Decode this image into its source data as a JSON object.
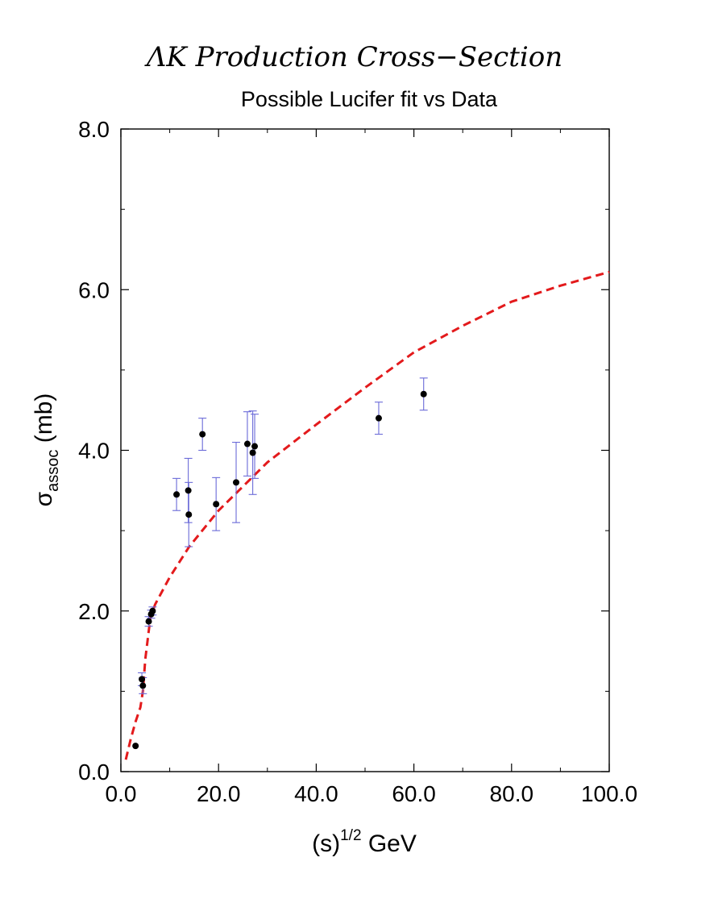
{
  "chart_data": {
    "type": "scatter",
    "title": "ΛK Production Cross−Section",
    "subtitle": "Possible Lucifer fit vs Data",
    "xlabel": {
      "main": "(s)",
      "sup": "1/2",
      "unit": " GeV"
    },
    "ylabel": {
      "symbol": "σ",
      "sub": "assoc",
      "unit": " (mb)"
    },
    "xlim": [
      0,
      100
    ],
    "ylim": [
      0,
      8
    ],
    "x_ticks": [
      "0.0",
      "20.0",
      "40.0",
      "60.0",
      "80.0",
      "100.0"
    ],
    "y_ticks": [
      "0.0",
      "2.0",
      "4.0",
      "6.0",
      "8.0"
    ],
    "x_tick_values": [
      0,
      20,
      40,
      60,
      80,
      100
    ],
    "y_tick_values": [
      0,
      2,
      4,
      6,
      8
    ],
    "grid": false,
    "colors": {
      "fit": "#e31a1c",
      "errorbar": "#6a6ad8",
      "point": "#000000"
    },
    "series": [
      {
        "kind": "data",
        "points": [
          {
            "x": 3.0,
            "y": 0.32,
            "err": 0.0
          },
          {
            "x": 4.3,
            "y": 1.15,
            "err": 0.08
          },
          {
            "x": 4.5,
            "y": 1.07,
            "err": 0.1
          },
          {
            "x": 5.7,
            "y": 1.87,
            "err": 0.06
          },
          {
            "x": 6.2,
            "y": 1.96,
            "err": 0.05
          },
          {
            "x": 6.5,
            "y": 2.0,
            "err": 0.05
          },
          {
            "x": 11.4,
            "y": 3.45,
            "err": 0.2
          },
          {
            "x": 13.8,
            "y": 3.5,
            "err": 0.4
          },
          {
            "x": 13.9,
            "y": 3.2,
            "err": 0.4
          },
          {
            "x": 16.7,
            "y": 4.2,
            "err": 0.2
          },
          {
            "x": 19.5,
            "y": 3.33,
            "err": 0.33
          },
          {
            "x": 23.6,
            "y": 3.6,
            "err": 0.5
          },
          {
            "x": 25.9,
            "y": 4.08,
            "err": 0.4
          },
          {
            "x": 27.0,
            "y": 3.97,
            "err": 0.52
          },
          {
            "x": 27.4,
            "y": 4.05,
            "err": 0.4
          },
          {
            "x": 52.8,
            "y": 4.4,
            "err": 0.2
          },
          {
            "x": 62.0,
            "y": 4.7,
            "err": 0.2
          }
        ]
      },
      {
        "kind": "fit",
        "style": "dashed",
        "x": [
          1.0,
          2.0,
          3.0,
          4.0,
          4.5,
          5.0,
          6.0,
          7.0,
          10.0,
          14.0,
          20.0,
          30.0,
          40.0,
          50.0,
          60.0,
          70.0,
          80.0,
          90.0,
          100.0
        ],
        "y": [
          0.15,
          0.4,
          0.62,
          0.8,
          1.0,
          1.4,
          1.9,
          2.08,
          2.42,
          2.8,
          3.25,
          3.85,
          4.32,
          4.78,
          5.22,
          5.55,
          5.85,
          6.05,
          6.22
        ]
      }
    ]
  }
}
